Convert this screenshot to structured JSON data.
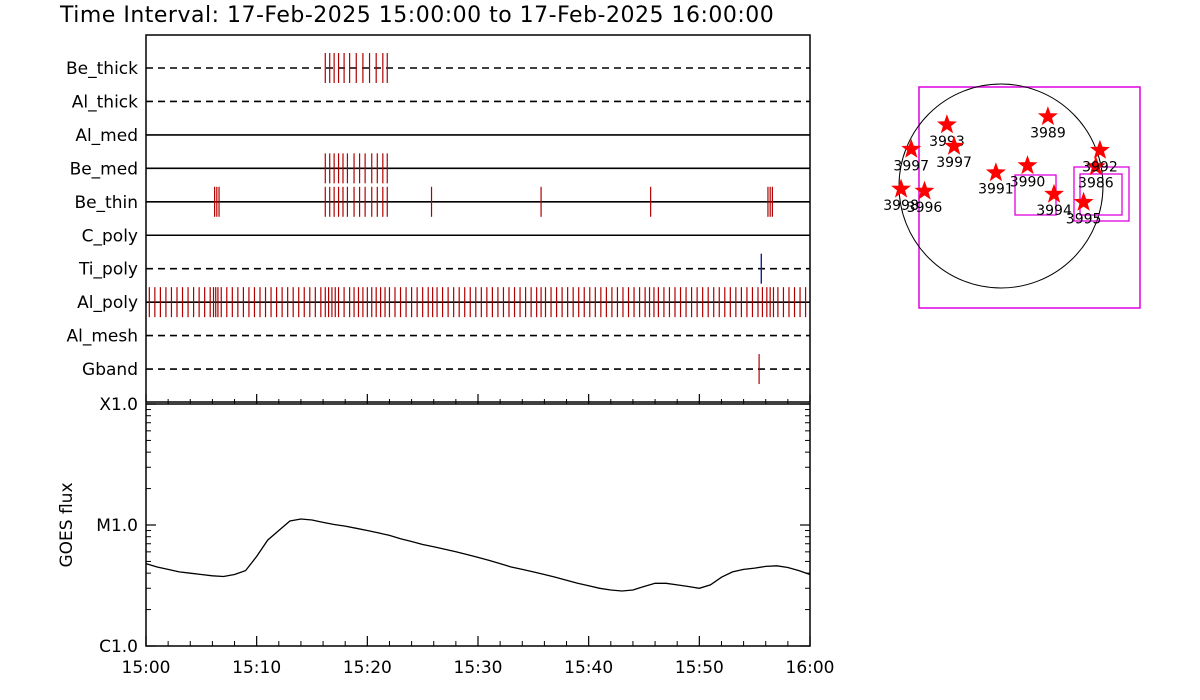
{
  "title": "Time Interval: 17-Feb-2025 15:00:00 to 17-Feb-2025 16:00:00",
  "colors": {
    "event": "#b00000",
    "event_blue": "#1a1aa0",
    "goes": "#000000",
    "box": "#e000e0",
    "star": "#ff0000",
    "axis": "#000000"
  },
  "chart_data": [
    {
      "type": "timeline",
      "x_unit": "minutes after 15:00",
      "xlim": [
        0,
        60
      ],
      "channels": [
        {
          "name": "Be_thick",
          "style": "dashed",
          "events": [
            16.2,
            16.6,
            17.0,
            17.4,
            17.9,
            18.4,
            19.0,
            19.6,
            20.2,
            20.8,
            21.4,
            21.8
          ]
        },
        {
          "name": "Al_thick",
          "style": "dashed",
          "events": []
        },
        {
          "name": "Al_med",
          "style": "solid",
          "events": []
        },
        {
          "name": "Be_med",
          "style": "solid",
          "events": [
            16.2,
            16.6,
            17.0,
            17.4,
            17.8,
            18.2,
            18.8,
            19.3,
            19.8,
            20.4,
            20.9,
            21.4,
            21.8
          ]
        },
        {
          "name": "Be_thin",
          "style": "solid",
          "events": [
            6.2,
            6.4,
            6.6,
            16.2,
            16.6,
            17.0,
            17.4,
            17.8,
            18.2,
            18.8,
            19.3,
            19.8,
            20.4,
            20.9,
            21.4,
            21.8,
            25.8,
            35.7,
            45.6,
            56.2,
            56.4,
            56.6
          ]
        },
        {
          "name": "C_poly",
          "style": "solid",
          "events": []
        },
        {
          "name": "Ti_poly",
          "style": "dashed",
          "events": [],
          "events_blue": [
            55.6
          ]
        },
        {
          "name": "Al_poly",
          "style": "solid",
          "events": [
            0.3,
            0.8,
            1.3,
            1.8,
            2.3,
            2.8,
            3.3,
            3.8,
            4.3,
            4.8,
            5.3,
            5.8,
            6.1,
            6.3,
            6.5,
            6.8,
            7.3,
            7.8,
            8.3,
            8.8,
            9.3,
            9.8,
            10.3,
            10.8,
            11.3,
            11.8,
            12.3,
            12.8,
            13.3,
            13.8,
            14.3,
            14.8,
            15.3,
            15.8,
            16.2,
            16.5,
            16.8,
            17.1,
            17.4,
            17.9,
            18.4,
            18.8,
            19.2,
            19.6,
            20.0,
            20.4,
            20.8,
            21.2,
            21.6,
            22.0,
            22.5,
            23.0,
            23.5,
            24.0,
            24.5,
            25.0,
            25.5,
            25.9,
            26.3,
            26.8,
            27.3,
            27.8,
            28.3,
            28.8,
            29.3,
            29.8,
            30.3,
            30.8,
            31.3,
            31.8,
            32.3,
            32.8,
            33.3,
            33.8,
            34.3,
            34.8,
            35.3,
            35.7,
            36.1,
            36.6,
            37.1,
            37.6,
            38.1,
            38.6,
            39.1,
            39.6,
            40.1,
            40.6,
            41.1,
            41.6,
            42.1,
            42.6,
            43.1,
            43.6,
            44.1,
            44.6,
            45.1,
            45.5,
            45.9,
            46.3,
            46.8,
            47.3,
            47.8,
            48.3,
            48.8,
            49.3,
            49.8,
            50.3,
            50.8,
            51.3,
            51.8,
            52.3,
            52.8,
            53.3,
            53.8,
            54.3,
            54.8,
            55.3,
            55.7,
            56.1,
            56.4,
            56.7,
            57.1,
            57.6,
            58.1,
            58.6,
            59.1,
            59.6
          ]
        },
        {
          "name": "Al_mesh",
          "style": "dashed",
          "events": []
        },
        {
          "name": "Gband",
          "style": "dashed",
          "events": [
            55.4
          ]
        }
      ]
    },
    {
      "type": "line",
      "ylabel": "GOES flux",
      "y_scale": "log",
      "yticks": [
        "C1.0",
        "M1.0",
        "X1.0"
      ],
      "ylim": [
        1e-06,
        0.0001
      ],
      "xticks": [
        "15:00",
        "15:10",
        "15:20",
        "15:30",
        "15:40",
        "15:50",
        "16:00"
      ],
      "x": [
        0,
        1,
        2,
        3,
        4,
        5,
        6,
        7,
        8,
        9,
        10,
        11,
        12,
        13,
        14,
        15,
        16,
        17,
        18,
        19,
        20,
        21,
        22,
        23,
        24,
        25,
        26,
        27,
        28,
        29,
        30,
        31,
        32,
        33,
        34,
        35,
        36,
        37,
        38,
        39,
        40,
        41,
        42,
        43,
        44,
        45,
        46,
        47,
        48,
        49,
        50,
        51,
        52,
        53,
        54,
        55,
        56,
        57,
        58,
        59,
        60
      ],
      "y": [
        4.8e-06,
        4.5e-06,
        4.3e-06,
        4.1e-06,
        4e-06,
        3.9e-06,
        3.8e-06,
        3.75e-06,
        3.9e-06,
        4.2e-06,
        5.5e-06,
        7.5e-06,
        9e-06,
        1.08e-05,
        1.12e-05,
        1.1e-05,
        1.05e-05,
        1.01e-05,
        9.8e-06,
        9.4e-06,
        9e-06,
        8.6e-06,
        8.2e-06,
        7.7e-06,
        7.3e-06,
        6.9e-06,
        6.6e-06,
        6.3e-06,
        6e-06,
        5.7e-06,
        5.4e-06,
        5.1e-06,
        4.8e-06,
        4.5e-06,
        4.3e-06,
        4.1e-06,
        3.9e-06,
        3.7e-06,
        3.5e-06,
        3.3e-06,
        3.15e-06,
        3e-06,
        2.9e-06,
        2.85e-06,
        2.9e-06,
        3.1e-06,
        3.3e-06,
        3.3e-06,
        3.2e-06,
        3.1e-06,
        3e-06,
        3.2e-06,
        3.7e-06,
        4.1e-06,
        4.3e-06,
        4.4e-06,
        4.55e-06,
        4.6e-06,
        4.45e-06,
        4.2e-06,
        3.9e-06
      ]
    },
    {
      "type": "scatter",
      "title": "",
      "active_regions": [
        {
          "label": "3997",
          "x": -0.88,
          "y": 0.36
        },
        {
          "label": "3993",
          "x": -0.53,
          "y": 0.6
        },
        {
          "label": "3997",
          "x": -0.46,
          "y": 0.39
        },
        {
          "label": "3989",
          "x": 0.46,
          "y": 0.68
        },
        {
          "label": "3998",
          "x": -0.98,
          "y": -0.03
        },
        {
          "label": "3996",
          "x": -0.75,
          "y": -0.05
        },
        {
          "label": "3991",
          "x": -0.05,
          "y": 0.13
        },
        {
          "label": "3990",
          "x": 0.26,
          "y": 0.2
        },
        {
          "label": "3994",
          "x": 0.52,
          "y": -0.08
        },
        {
          "label": "3986",
          "x": 0.93,
          "y": 0.19
        },
        {
          "label": "3992",
          "x": 0.97,
          "y": 0.35
        },
        {
          "label": "3995",
          "x": 0.81,
          "y": -0.16
        }
      ]
    }
  ]
}
